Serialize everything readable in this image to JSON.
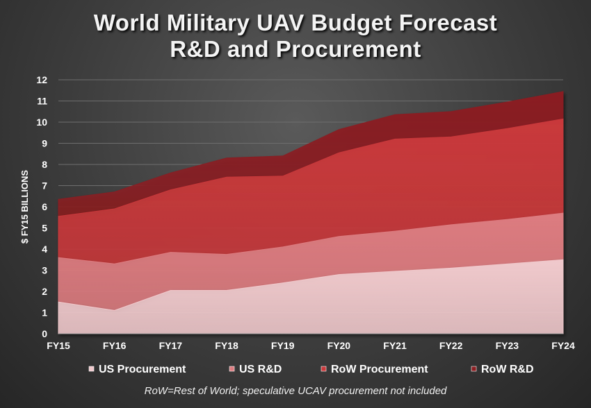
{
  "title_line1": "World Military UAV Budget Forecast",
  "title_line2": "R&D and Procurement",
  "footnote": "RoW=Rest of World; speculative UCAV procurement not included",
  "chart_data": {
    "type": "area",
    "stacked": true,
    "categories": [
      "FY15",
      "FY16",
      "FY17",
      "FY18",
      "FY19",
      "FY20",
      "FY21",
      "FY22",
      "FY23",
      "FY24"
    ],
    "ylabel": "$ FY15 BILLIONS",
    "xlabel": "",
    "ylim": [
      0,
      12
    ],
    "yticks": [
      0,
      1,
      2,
      3,
      4,
      5,
      6,
      7,
      8,
      9,
      10,
      11,
      12
    ],
    "grid": true,
    "legend_position": "bottom",
    "series": [
      {
        "name": "US Procurement",
        "color": "#f0c9cc",
        "values": [
          1.5,
          1.1,
          2.05,
          2.05,
          2.4,
          2.8,
          2.95,
          3.1,
          3.3,
          3.5
        ]
      },
      {
        "name": "US R&D",
        "color": "#dd7c80",
        "values": [
          2.1,
          2.2,
          1.8,
          1.7,
          1.7,
          1.8,
          1.9,
          2.05,
          2.1,
          2.2
        ]
      },
      {
        "name": "RoW Procurement",
        "color": "#c9393b",
        "values": [
          1.95,
          2.6,
          2.95,
          3.65,
          3.35,
          3.95,
          4.35,
          4.15,
          4.3,
          4.45
        ]
      },
      {
        "name": "RoW R&D",
        "color": "#8a1e22",
        "values": [
          0.8,
          0.8,
          0.8,
          0.9,
          0.95,
          1.1,
          1.15,
          1.2,
          1.25,
          1.3
        ]
      }
    ]
  }
}
